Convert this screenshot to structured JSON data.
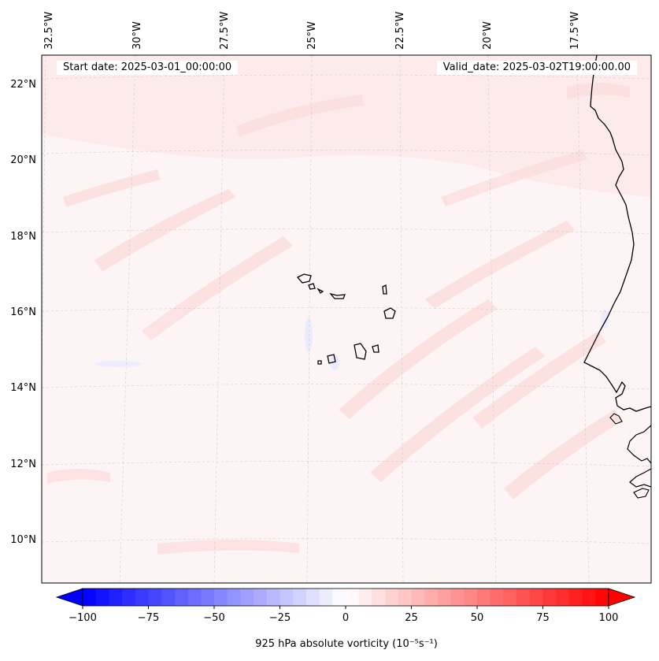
{
  "map": {
    "start_date_text": "Start date: 2025-03-01_00:00:00",
    "valid_date_text": "Valid_date: 2025-03-02T19:00:00.00",
    "top_labels": [
      "32.5°W",
      "30°W",
      "27.5°W",
      "25°W",
      "22.5°W",
      "20°W",
      "17.5°W"
    ],
    "left_labels": [
      "22°N",
      "20°N",
      "18°N",
      "16°N",
      "14°N",
      "12°N",
      "10°N"
    ],
    "field": "925 hPa absolute vorticity",
    "background_color": "#fdf6f6"
  },
  "colorbar": {
    "label": "925 hPa absolute vorticity (10⁻⁵s⁻¹)",
    "ticks": [
      "−100",
      "−75",
      "−50",
      "−25",
      "0",
      "25",
      "50",
      "75",
      "100"
    ],
    "range": [
      -100,
      100
    ],
    "step": 5,
    "low_color": "#0000ff",
    "mid_color": "#ffffff",
    "high_color": "#ff0000"
  }
}
